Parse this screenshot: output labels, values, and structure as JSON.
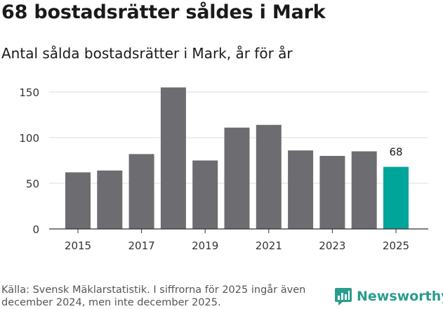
{
  "header": {
    "title": "68 bostadsrätter såldes i Mark",
    "subtitle": "Antal sålda bostadsrätter i Mark, år för år"
  },
  "footer": {
    "source": "Källa: Svensk Mäklarstatistik. I siffrorna för 2025 ingår även december 2024, men inte december 2025.",
    "brand": "Newsworthy"
  },
  "colors": {
    "bar": "#6d6c70",
    "highlight": "#00a599",
    "grid": "#dddddd",
    "brand": "#2a9d8f"
  },
  "chart_data": {
    "type": "bar",
    "title": "68 bostadsrätter såldes i Mark",
    "subtitle": "Antal sålda bostadsrätter i Mark, år för år",
    "categories": [
      "2015",
      "2016",
      "2017",
      "2018",
      "2019",
      "2020",
      "2021",
      "2022",
      "2023",
      "2024",
      "2025"
    ],
    "values": [
      62,
      64,
      82,
      155,
      75,
      111,
      114,
      86,
      80,
      85,
      68
    ],
    "highlight_index": 10,
    "data_label": "68",
    "ylim": [
      0,
      160
    ],
    "yticks": [
      0,
      50,
      100,
      150
    ],
    "xtick_labels": [
      "2015",
      "2017",
      "2019",
      "2021",
      "2023",
      "2025"
    ],
    "xlabel": "",
    "ylabel": "",
    "grid": true,
    "legend": "none"
  }
}
